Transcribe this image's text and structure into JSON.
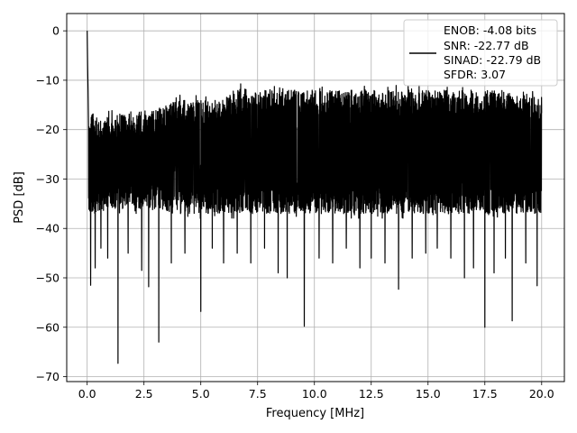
{
  "chart_data": {
    "type": "line",
    "title": "",
    "xlabel": "Frequency [MHz]",
    "ylabel": "PSD [dB]",
    "xlim": [
      -0.9,
      21.0
    ],
    "ylim": [
      -71,
      3.5
    ],
    "grid": true,
    "x_ticks": [
      0.0,
      2.5,
      5.0,
      7.5,
      10.0,
      12.5,
      15.0,
      17.5,
      20.0
    ],
    "x_tick_labels": [
      "0.0",
      "2.5",
      "5.0",
      "7.5",
      "10.0",
      "12.5",
      "15.0",
      "17.5",
      "20.0"
    ],
    "y_ticks": [
      0,
      -10,
      -20,
      -30,
      -40,
      -50,
      -60,
      -70
    ],
    "y_tick_labels": [
      "0",
      "−10",
      "−20",
      "−30",
      "−40",
      "−50",
      "−60",
      "−70"
    ],
    "legend": {
      "placement": "top-right",
      "lines": [
        "ENOB: -4.08 bits",
        "SNR: -22.77 dB",
        "SINAD: -22.79 dB",
        "SFDR: 3.07"
      ]
    },
    "series": [
      {
        "color": "#000000",
        "x_range": [
          0.0,
          20.0
        ],
        "dense_noise": true,
        "peaks": [
          {
            "x": 0.0,
            "y": 0
          },
          {
            "x": 0.02,
            "y": -7
          },
          {
            "x": 0.04,
            "y": -12
          }
        ],
        "band_top_db": [
          [
            0.1,
            -15
          ],
          [
            0.5,
            -17
          ],
          [
            1.0,
            -16
          ],
          [
            2.0,
            -16
          ],
          [
            2.5,
            -15
          ],
          [
            3.0,
            -15
          ],
          [
            4.0,
            -13
          ],
          [
            5.0,
            -13
          ],
          [
            6.0,
            -13
          ],
          [
            6.6,
            -10
          ],
          [
            7.0,
            -11
          ],
          [
            8.0,
            -11
          ],
          [
            9.0,
            -11
          ],
          [
            10.0,
            -11
          ],
          [
            11.0,
            -11
          ],
          [
            12.0,
            -11
          ],
          [
            13.0,
            -11
          ],
          [
            14.0,
            -11
          ],
          [
            15.0,
            -11
          ],
          [
            16.0,
            -11
          ],
          [
            17.0,
            -11
          ],
          [
            18.0,
            -11
          ],
          [
            19.0,
            -12
          ],
          [
            20.0,
            -12
          ]
        ],
        "band_bottom_db": [
          [
            0.1,
            -38
          ],
          [
            0.5,
            -38
          ],
          [
            1.0,
            -37
          ],
          [
            2.0,
            -37
          ],
          [
            3.0,
            -37
          ],
          [
            4.0,
            -38
          ],
          [
            5.0,
            -38
          ],
          [
            6.0,
            -38
          ],
          [
            8.0,
            -38
          ],
          [
            10.0,
            -38
          ],
          [
            12.0,
            -38
          ],
          [
            14.0,
            -38
          ],
          [
            16.0,
            -38
          ],
          [
            18.0,
            -38
          ],
          [
            20.0,
            -38
          ]
        ],
        "deep_dips": [
          [
            0.15,
            -51.5
          ],
          [
            0.35,
            -48
          ],
          [
            0.6,
            -44
          ],
          [
            0.9,
            -46
          ],
          [
            1.35,
            -67.3
          ],
          [
            1.8,
            -45
          ],
          [
            2.4,
            -48.5
          ],
          [
            2.7,
            -51.8
          ],
          [
            3.15,
            -63
          ],
          [
            3.7,
            -47
          ],
          [
            4.3,
            -45
          ],
          [
            5.0,
            -56.8
          ],
          [
            5.5,
            -44
          ],
          [
            6.0,
            -47
          ],
          [
            6.6,
            -45
          ],
          [
            7.2,
            -47
          ],
          [
            7.8,
            -44
          ],
          [
            8.4,
            -49
          ],
          [
            8.8,
            -50
          ],
          [
            9.55,
            -59.8
          ],
          [
            10.2,
            -46
          ],
          [
            10.8,
            -47
          ],
          [
            11.4,
            -44
          ],
          [
            12.0,
            -48
          ],
          [
            12.5,
            -46
          ],
          [
            13.1,
            -47
          ],
          [
            13.7,
            -52.3
          ],
          [
            14.3,
            -46
          ],
          [
            14.9,
            -45
          ],
          [
            15.4,
            -44
          ],
          [
            16.0,
            -46
          ],
          [
            16.6,
            -50
          ],
          [
            17.0,
            -48
          ],
          [
            17.5,
            -60
          ],
          [
            17.9,
            -49
          ],
          [
            18.4,
            -46
          ],
          [
            18.7,
            -58.7
          ],
          [
            19.3,
            -47
          ],
          [
            19.8,
            -51.6
          ]
        ]
      }
    ]
  }
}
